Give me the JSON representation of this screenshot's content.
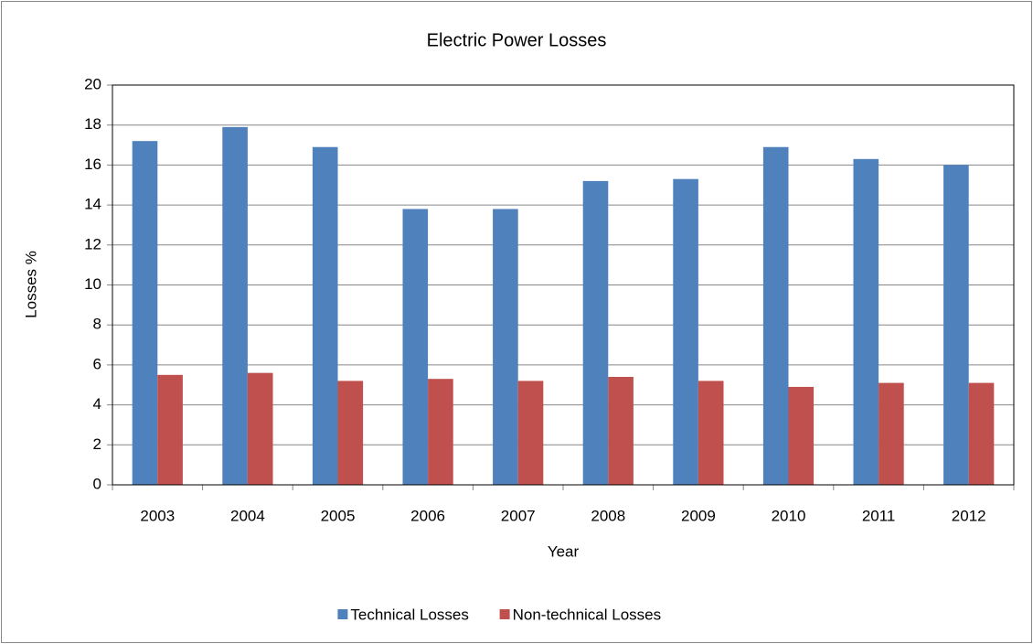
{
  "chart_data": {
    "type": "bar",
    "title": "Electric Power Losses",
    "x_label": "Year",
    "y_label": "Losses %",
    "categories": [
      "2003",
      "2004",
      "2005",
      "2006",
      "2007",
      "2008",
      "2009",
      "2010",
      "2011",
      "2012"
    ],
    "series": [
      {
        "name": "Technical Losses",
        "color": "#4f81bd",
        "values": [
          17.2,
          17.9,
          16.9,
          13.8,
          13.8,
          15.2,
          15.3,
          16.9,
          16.3,
          16.0
        ]
      },
      {
        "name": "Non-technical Losses",
        "color": "#c0504d",
        "values": [
          5.5,
          5.6,
          5.2,
          5.3,
          5.2,
          5.4,
          5.2,
          4.9,
          5.1,
          5.1
        ]
      }
    ],
    "ylim": [
      0,
      20
    ],
    "yticks": [
      0,
      2,
      4,
      6,
      8,
      10,
      12,
      14,
      16,
      18,
      20
    ],
    "grid": true,
    "legend": "bottom"
  }
}
